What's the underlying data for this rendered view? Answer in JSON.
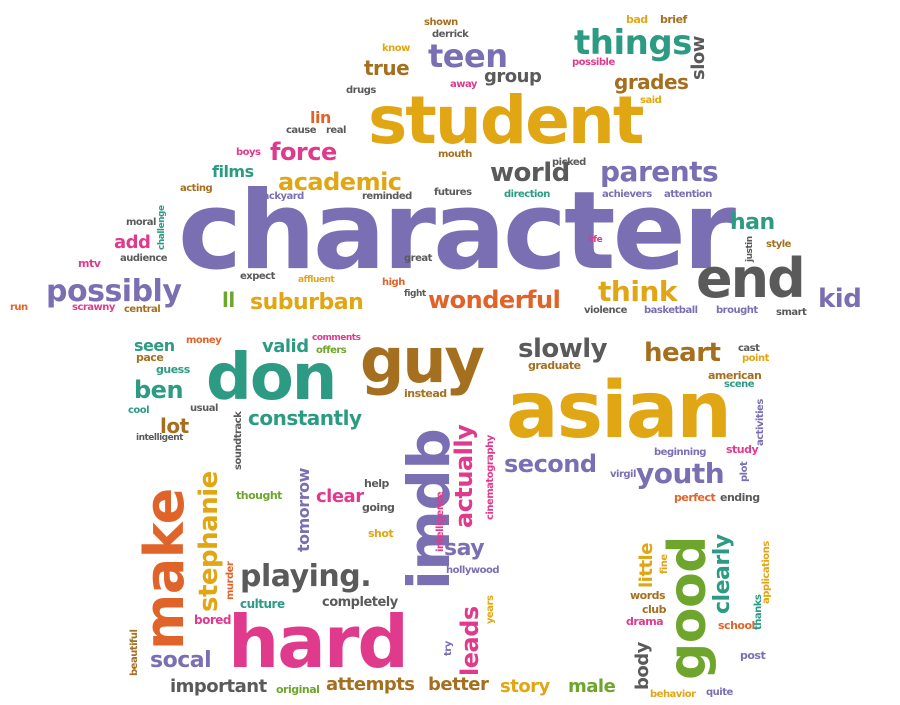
{
  "colors": {
    "purple": "#7a6fb3",
    "gold": "#e1a614",
    "orange": "#e0642a",
    "pink": "#e03a8d",
    "green": "#2d9b83",
    "brown": "#a56f20",
    "gray": "#5a5a5a",
    "lime": "#6ea52c"
  },
  "words": [
    {
      "id": "character",
      "text": "character",
      "color": "purple"
    },
    {
      "id": "student",
      "text": "student",
      "color": "gold"
    },
    {
      "id": "asian",
      "text": "asian",
      "color": "gold"
    },
    {
      "id": "hard",
      "text": "hard",
      "color": "pink"
    },
    {
      "id": "guy",
      "text": "guy",
      "color": "brown"
    },
    {
      "id": "don",
      "text": "don",
      "color": "green"
    },
    {
      "id": "end",
      "text": "end",
      "color": "gray"
    },
    {
      "id": "imdb",
      "text": "imdb",
      "color": "purple"
    },
    {
      "id": "make",
      "text": "make",
      "color": "orange"
    },
    {
      "id": "good",
      "text": "good",
      "color": "lime"
    },
    {
      "id": "things",
      "text": "things",
      "color": "green"
    },
    {
      "id": "teen",
      "text": "teen",
      "color": "purple"
    },
    {
      "id": "possibly",
      "text": "possibly",
      "color": "purple"
    },
    {
      "id": "wonderful",
      "text": "wonderful",
      "color": "orange"
    },
    {
      "id": "suburban",
      "text": "suburban",
      "color": "gold"
    },
    {
      "id": "think",
      "text": "think",
      "color": "gold"
    },
    {
      "id": "academic",
      "text": "academic",
      "color": "gold"
    },
    {
      "id": "force",
      "text": "force",
      "color": "pink"
    },
    {
      "id": "parents",
      "text": "parents",
      "color": "purple"
    },
    {
      "id": "world",
      "text": "world",
      "color": "gray"
    },
    {
      "id": "kid",
      "text": "kid",
      "color": "purple"
    },
    {
      "id": "han",
      "text": "han",
      "color": "green"
    },
    {
      "id": "grades",
      "text": "grades",
      "color": "brown"
    },
    {
      "id": "slow",
      "text": "slow",
      "color": "gray"
    },
    {
      "id": "true",
      "text": "true",
      "color": "brown"
    },
    {
      "id": "group",
      "text": "group",
      "color": "gray"
    },
    {
      "id": "playing",
      "text": "playing.",
      "color": "gray"
    },
    {
      "id": "slowly",
      "text": "slowly",
      "color": "gray"
    },
    {
      "id": "heart",
      "text": "heart",
      "color": "brown"
    },
    {
      "id": "youth",
      "text": "youth",
      "color": "purple"
    },
    {
      "id": "second",
      "text": "second",
      "color": "purple"
    },
    {
      "id": "stephanie",
      "text": "stephanie",
      "color": "gold"
    },
    {
      "id": "actually",
      "text": "actually",
      "color": "pink"
    },
    {
      "id": "leads",
      "text": "leads",
      "color": "pink"
    },
    {
      "id": "say",
      "text": "say",
      "color": "purple"
    },
    {
      "id": "constantly",
      "text": "constantly",
      "color": "green"
    },
    {
      "id": "ben",
      "text": "ben",
      "color": "green"
    },
    {
      "id": "socal",
      "text": "socal",
      "color": "purple"
    },
    {
      "id": "clearly",
      "text": "clearly",
      "color": "green"
    },
    {
      "id": "little",
      "text": "little",
      "color": "gold"
    },
    {
      "id": "body",
      "text": "body",
      "color": "gray"
    },
    {
      "id": "valid",
      "text": "valid",
      "color": "green"
    },
    {
      "id": "seen",
      "text": "seen",
      "color": "green"
    },
    {
      "id": "lot",
      "text": "lot",
      "color": "brown"
    },
    {
      "id": "add",
      "text": "add",
      "color": "pink"
    },
    {
      "id": "films",
      "text": "films",
      "color": "green"
    },
    {
      "id": "lin",
      "text": "lin",
      "color": "orange"
    },
    {
      "id": "ll",
      "text": "ll",
      "color": "lime"
    },
    {
      "id": "clear",
      "text": "clear",
      "color": "pink"
    },
    {
      "id": "tomorrow",
      "text": "tomorrow",
      "color": "purple"
    },
    {
      "id": "important",
      "text": "important",
      "color": "gray"
    },
    {
      "id": "attempts",
      "text": "attempts",
      "color": "brown"
    },
    {
      "id": "better",
      "text": "better",
      "color": "brown"
    },
    {
      "id": "story",
      "text": "story",
      "color": "gold"
    },
    {
      "id": "male",
      "text": "male",
      "color": "lime"
    },
    {
      "id": "completely",
      "text": "completely",
      "color": "gray"
    },
    {
      "id": "culture",
      "text": "culture",
      "color": "green"
    },
    {
      "id": "original",
      "text": "original",
      "color": "lime"
    },
    {
      "id": "bored",
      "text": "bored",
      "color": "pink"
    },
    {
      "id": "drama",
      "text": "drama",
      "color": "pink"
    },
    {
      "id": "club",
      "text": "club",
      "color": "brown"
    },
    {
      "id": "words",
      "text": "words",
      "color": "brown"
    },
    {
      "id": "school",
      "text": "school",
      "color": "orange"
    },
    {
      "id": "post",
      "text": "post",
      "color": "purple"
    },
    {
      "id": "behavior",
      "text": "behavior",
      "color": "gold"
    },
    {
      "id": "quite",
      "text": "quite",
      "color": "purple"
    },
    {
      "id": "perfect",
      "text": "perfect",
      "color": "orange"
    },
    {
      "id": "ending",
      "text": "ending",
      "color": "gray"
    },
    {
      "id": "beginning",
      "text": "beginning",
      "color": "purple"
    },
    {
      "id": "study",
      "text": "study",
      "color": "pink"
    },
    {
      "id": "american",
      "text": "american",
      "color": "brown"
    },
    {
      "id": "scene",
      "text": "scene",
      "color": "green"
    },
    {
      "id": "cast",
      "text": "cast",
      "color": "gray"
    },
    {
      "id": "point",
      "text": "point",
      "color": "gold"
    },
    {
      "id": "activities",
      "text": "activities",
      "color": "purple"
    },
    {
      "id": "plot",
      "text": "plot",
      "color": "purple"
    },
    {
      "id": "virgil",
      "text": "virgil",
      "color": "purple"
    },
    {
      "id": "graduate",
      "text": "graduate",
      "color": "brown"
    },
    {
      "id": "instead",
      "text": "instead",
      "color": "brown"
    },
    {
      "id": "help",
      "text": "help",
      "color": "gray"
    },
    {
      "id": "going",
      "text": "going",
      "color": "gray"
    },
    {
      "id": "shot",
      "text": "shot",
      "color": "gold"
    },
    {
      "id": "hollywood",
      "text": "hollywood",
      "color": "purple"
    },
    {
      "id": "years",
      "text": "years",
      "color": "gold"
    },
    {
      "id": "try",
      "text": "try",
      "color": "purple"
    },
    {
      "id": "intelligence",
      "text": "intelligence",
      "color": "pink"
    },
    {
      "id": "cinematography",
      "text": "cinematography",
      "color": "pink"
    },
    {
      "id": "thought",
      "text": "thought",
      "color": "lime"
    },
    {
      "id": "soundtrack",
      "text": "soundtrack",
      "color": "gray"
    },
    {
      "id": "murder",
      "text": "murder",
      "color": "orange"
    },
    {
      "id": "beautiful",
      "text": "beautiful",
      "color": "brown"
    },
    {
      "id": "fine",
      "text": "fine",
      "color": "gold"
    },
    {
      "id": "thanks",
      "text": "thanks",
      "color": "green"
    },
    {
      "id": "applications",
      "text": "applications",
      "color": "gold"
    },
    {
      "id": "pace",
      "text": "pace",
      "color": "brown"
    },
    {
      "id": "guess",
      "text": "guess",
      "color": "green"
    },
    {
      "id": "money",
      "text": "money",
      "color": "orange"
    },
    {
      "id": "comments",
      "text": "comments",
      "color": "pink"
    },
    {
      "id": "offers",
      "text": "offers",
      "color": "lime"
    },
    {
      "id": "cool",
      "text": "cool",
      "color": "green"
    },
    {
      "id": "usual",
      "text": "usual",
      "color": "gray"
    },
    {
      "id": "intelligent",
      "text": "intelligent",
      "color": "gray"
    },
    {
      "id": "run",
      "text": "run",
      "color": "orange"
    },
    {
      "id": "scrawny",
      "text": "scrawny",
      "color": "pink"
    },
    {
      "id": "central",
      "text": "central",
      "color": "brown"
    },
    {
      "id": "mtv",
      "text": "mtv",
      "color": "pink"
    },
    {
      "id": "audience",
      "text": "audience",
      "color": "gray"
    },
    {
      "id": "challenge",
      "text": "challenge",
      "color": "green"
    },
    {
      "id": "moral",
      "text": "moral",
      "color": "gray"
    },
    {
      "id": "acting",
      "text": "acting",
      "color": "brown"
    },
    {
      "id": "backyard",
      "text": "backyard",
      "color": "purple"
    },
    {
      "id": "boys",
      "text": "boys",
      "color": "pink"
    },
    {
      "id": "cause",
      "text": "cause",
      "color": "gray"
    },
    {
      "id": "real",
      "text": "real",
      "color": "gray"
    },
    {
      "id": "drugs",
      "text": "drugs",
      "color": "gray"
    },
    {
      "id": "away",
      "text": "away",
      "color": "pink"
    },
    {
      "id": "know",
      "text": "know",
      "color": "gold"
    },
    {
      "id": "derrick",
      "text": "derrick",
      "color": "gray"
    },
    {
      "id": "shown",
      "text": "shown",
      "color": "brown"
    },
    {
      "id": "bad",
      "text": "bad",
      "color": "gold"
    },
    {
      "id": "brief",
      "text": "brief",
      "color": "brown"
    },
    {
      "id": "possible",
      "text": "possible",
      "color": "pink"
    },
    {
      "id": "said",
      "text": "said",
      "color": "gold"
    },
    {
      "id": "mouth",
      "text": "mouth",
      "color": "brown"
    },
    {
      "id": "picked",
      "text": "picked",
      "color": "gray"
    },
    {
      "id": "reminded",
      "text": "reminded",
      "color": "gray"
    },
    {
      "id": "futures",
      "text": "futures",
      "color": "gray"
    },
    {
      "id": "direction",
      "text": "direction",
      "color": "green"
    },
    {
      "id": "achievers",
      "text": "achievers",
      "color": "purple"
    },
    {
      "id": "attention",
      "text": "attention",
      "color": "purple"
    },
    {
      "id": "life",
      "text": "life",
      "color": "pink"
    },
    {
      "id": "justin",
      "text": "justin",
      "color": "gray"
    },
    {
      "id": "style",
      "text": "style",
      "color": "brown"
    },
    {
      "id": "expect",
      "text": "expect",
      "color": "gray"
    },
    {
      "id": "affluent",
      "text": "affluent",
      "color": "gold"
    },
    {
      "id": "high",
      "text": "high",
      "color": "orange"
    },
    {
      "id": "great",
      "text": "great",
      "color": "gray"
    },
    {
      "id": "fight",
      "text": "fight",
      "color": "gray"
    },
    {
      "id": "violence",
      "text": "violence",
      "color": "gray"
    },
    {
      "id": "basketball",
      "text": "basketball",
      "color": "purple"
    },
    {
      "id": "brought",
      "text": "brought",
      "color": "purple"
    },
    {
      "id": "smart",
      "text": "smart",
      "color": "gray"
    }
  ]
}
